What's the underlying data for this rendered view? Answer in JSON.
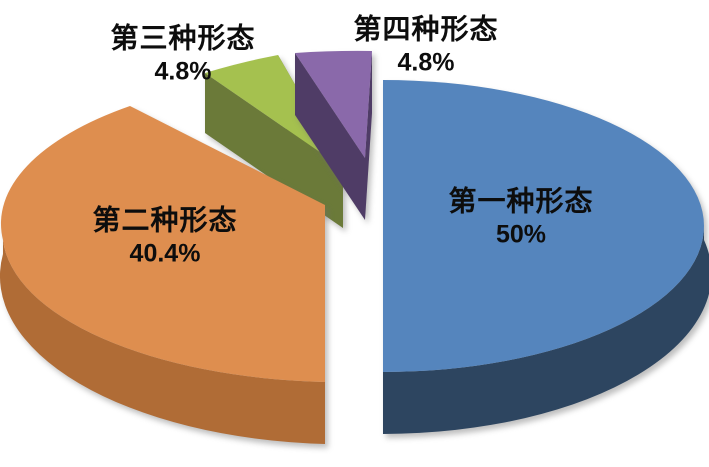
{
  "chart_data": {
    "type": "pie",
    "title": "",
    "style": "3d-exploded-pie",
    "legend": "none",
    "background": "#FFFFFF",
    "label_text_color": "#0D0D0D",
    "slices": [
      {
        "name": "第一种形态",
        "value": 50,
        "display": "50%",
        "color_top": "#5585BD",
        "color_side": "#2D4560",
        "label_position": "inside"
      },
      {
        "name": "第二种形态",
        "value": 40.4,
        "display": "40.4%",
        "color_top": "#DE8E4F",
        "color_side": "#B06C36",
        "label_position": "inside"
      },
      {
        "name": "第三种形态",
        "value": 4.8,
        "display": "4.8%",
        "color_top": "#A5C14F",
        "color_side": "#6B7A39",
        "label_position": "outside-top-left"
      },
      {
        "name": "第四种形态",
        "value": 4.8,
        "display": "4.8%",
        "color_top": "#8A69AA",
        "color_side": "#4F3C66",
        "label_position": "outside-top-right"
      }
    ]
  }
}
